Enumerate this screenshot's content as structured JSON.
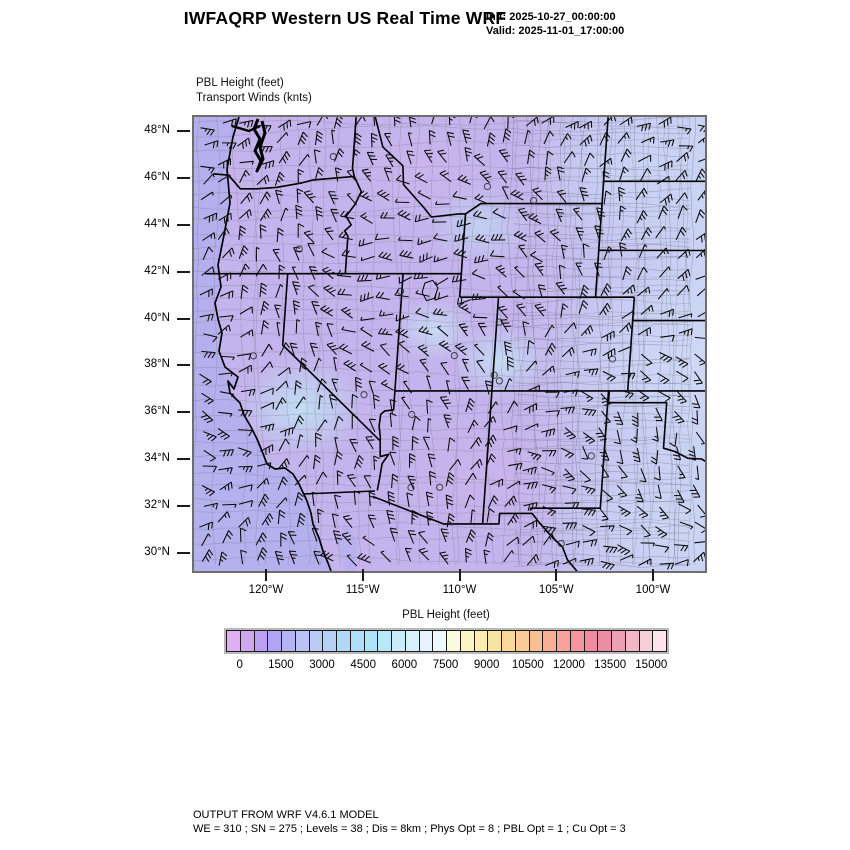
{
  "header": {
    "title": "IWFAQRP Western US Real Time WRF",
    "init": "Init: 2025-10-27_00:00:00",
    "valid": "Valid: 2025-11-01_17:00:00"
  },
  "map": {
    "field_label": "PBL Height   (feet)",
    "wind_label": "Transport Winds   (knts)",
    "lat_tick_labels": [
      "48°N",
      "46°N",
      "44°N",
      "42°N",
      "40°N",
      "38°N",
      "36°N",
      "34°N",
      "32°N",
      "30°N"
    ],
    "lon_tick_labels": [
      "120°W",
      "115°W",
      "110°W",
      "105°W",
      "100°W"
    ],
    "land_color": "#c4b3ec",
    "ocean_color": "#b1afee",
    "boundary_color": "#000000"
  },
  "colorbar": {
    "title": "PBL Height  (feet)",
    "tick_labels": [
      "0",
      "1500",
      "3000",
      "4500",
      "6000",
      "7500",
      "9000",
      "10500",
      "12000",
      "13500",
      "15000"
    ],
    "min": 0,
    "max": 15000,
    "interval": 1500,
    "colors": [
      "#deaff4",
      "#cfa6f2",
      "#bba0f2",
      "#b1a4f4",
      "#b4b4f4",
      "#b9c2f4",
      "#bccbf5",
      "#b7d0f6",
      "#b2d8f7",
      "#aedef8",
      "#aee3f8",
      "#b9e7f9",
      "#c8ecfa",
      "#d8f0fb",
      "#e5f4fc",
      "#eff8fd",
      "#fbfadc",
      "#faf5c2",
      "#f9eeb0",
      "#f8e4a0",
      "#f8d998",
      "#f8cc94",
      "#f7bf94",
      "#f7b096",
      "#f7a29b",
      "#f595a0",
      "#ee8da1",
      "#e98fa5",
      "#eca0b1",
      "#f1b6c3",
      "#f6ceda",
      "#fbe4ec"
    ]
  },
  "footer": {
    "line1": "OUTPUT FROM WRF V4.6.1 MODEL",
    "line2": "WE = 310 ; SN = 275 ; Levels = 38 ; Dis = 8km ; Phys Opt = 8 ; PBL Opt = 1 ; Cu Opt = 3"
  }
}
